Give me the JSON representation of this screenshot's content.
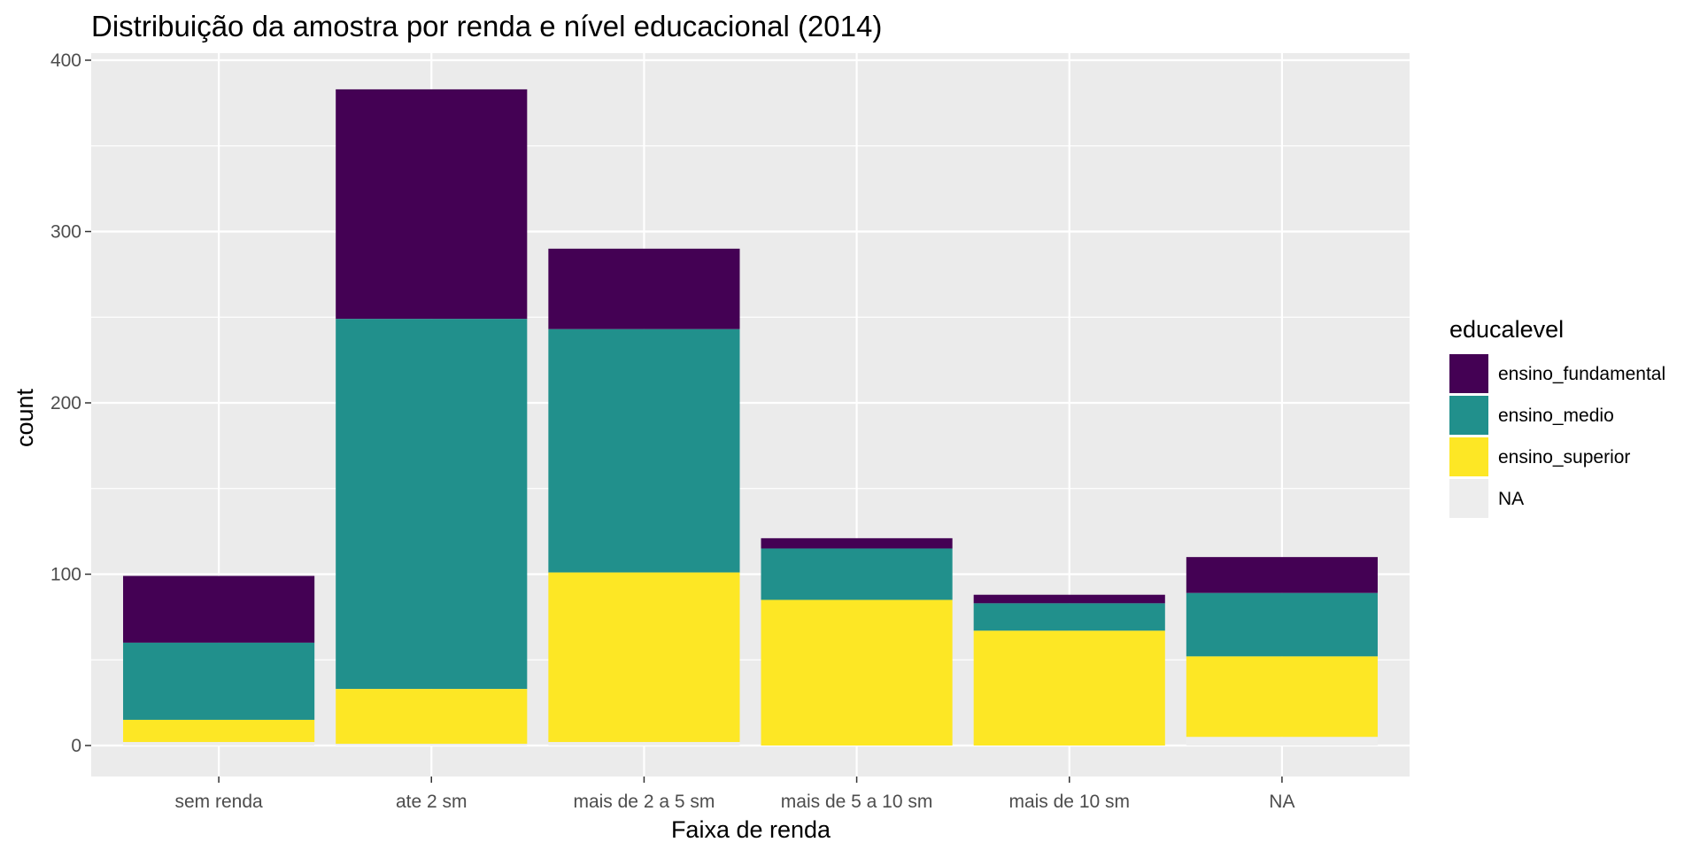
{
  "chart_data": {
    "type": "bar",
    "stacked": true,
    "title": "Distribuição da amostra por renda e nível educacional (2014)",
    "xlabel": "Faixa de renda",
    "ylabel": "count",
    "ylim": [
      0,
      400
    ],
    "yticks": [
      0,
      100,
      200,
      300,
      400
    ],
    "grid": true,
    "legend_position": "right",
    "legend_title": "educalevel",
    "categories": [
      "sem renda",
      "ate 2 sm",
      "mais de 2 a 5 sm",
      "mais de 5 a 10 sm",
      "mais de 10 sm",
      "NA"
    ],
    "series": [
      {
        "name": "ensino_fundamental",
        "color": "#440154",
        "values": [
          39,
          134,
          47,
          6,
          5,
          21
        ]
      },
      {
        "name": "ensino_medio",
        "color": "#21908C",
        "values": [
          45,
          216,
          142,
          30,
          16,
          37
        ]
      },
      {
        "name": "ensino_superior",
        "color": "#FDE725",
        "values": [
          13,
          32,
          99,
          85,
          67,
          47
        ]
      },
      {
        "name": "NA",
        "color": "#EDEDED",
        "values": [
          2,
          1,
          2,
          0,
          0,
          5
        ]
      }
    ]
  },
  "colors": {
    "panel_background": "#EBEBEB",
    "grid_major": "#FFFFFF",
    "tick_text": "#4D4D4D"
  }
}
